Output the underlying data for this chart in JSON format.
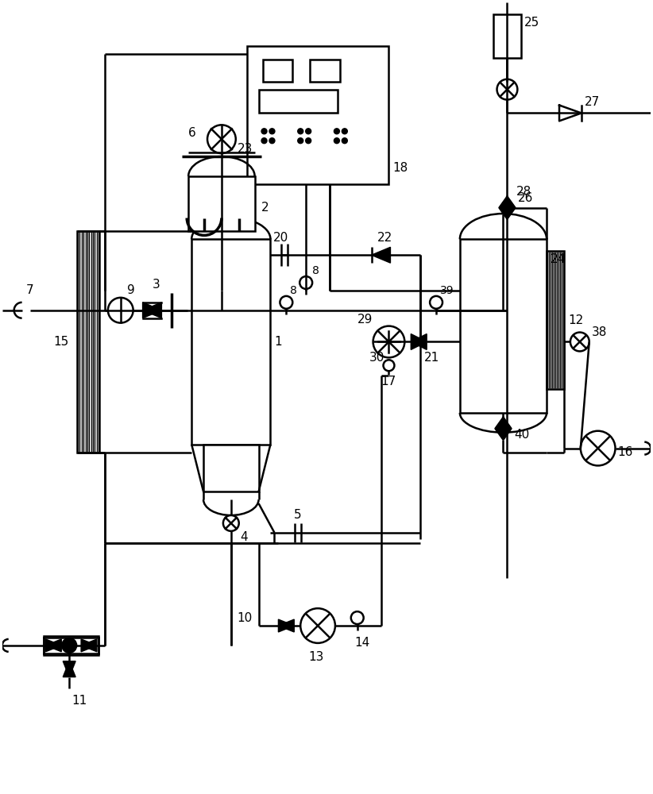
{
  "bg_color": "#ffffff",
  "lw": 1.8,
  "lw_thin": 1.0,
  "lw_thick": 2.5
}
